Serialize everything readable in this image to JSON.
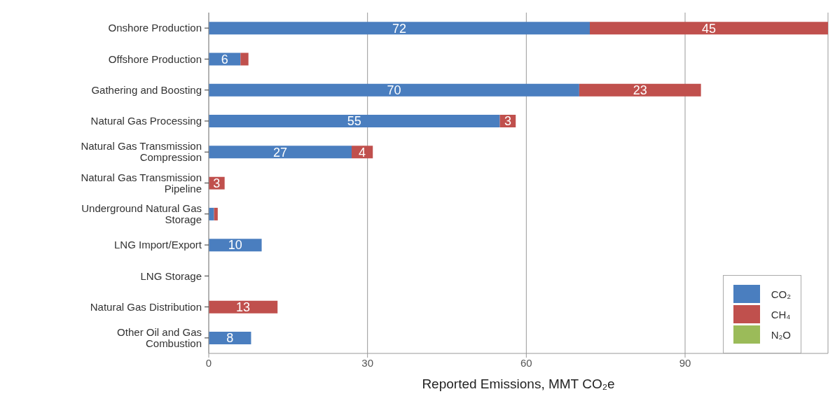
{
  "chart_data": {
    "type": "bar",
    "orientation": "horizontal",
    "stacked": true,
    "categories": [
      "Onshore Production",
      "Offshore Production",
      "Gathering and Boosting",
      "Natural Gas Processing",
      "Natural Gas Transmission Compression",
      "Natural Gas Transmission Pipeline",
      "Underground Natural Gas Storage",
      "LNG Import/Export",
      "LNG Storage",
      "Natural Gas Distribution",
      "Other Oil and Gas Combustion"
    ],
    "series": [
      {
        "name": "CO₂",
        "color": "#4a7ebf",
        "values": [
          72,
          6,
          70,
          55,
          27,
          0,
          1,
          10,
          0,
          0,
          8
        ],
        "value_labels": [
          "72",
          "6",
          "70",
          "55",
          "27",
          null,
          null,
          "10",
          null,
          null,
          "8"
        ]
      },
      {
        "name": "CH₄",
        "color": "#c0504d",
        "values": [
          45,
          1.5,
          23,
          3,
          4,
          3,
          0.7,
          0,
          0,
          13,
          0
        ],
        "value_labels": [
          "45",
          null,
          "23",
          "3",
          "4",
          "3",
          null,
          null,
          null,
          "13",
          null
        ]
      },
      {
        "name": "N₂O",
        "color": "#9bbb59",
        "values": [
          0,
          0,
          0,
          0,
          0,
          0,
          0,
          0,
          0,
          0,
          0
        ]
      }
    ],
    "xlabel": "Reported Emissions, MMT CO₂e",
    "xlim": [
      0,
      117
    ],
    "xticks": [
      0,
      30,
      60,
      90
    ],
    "grid": "x",
    "legend": "bottom right"
  }
}
